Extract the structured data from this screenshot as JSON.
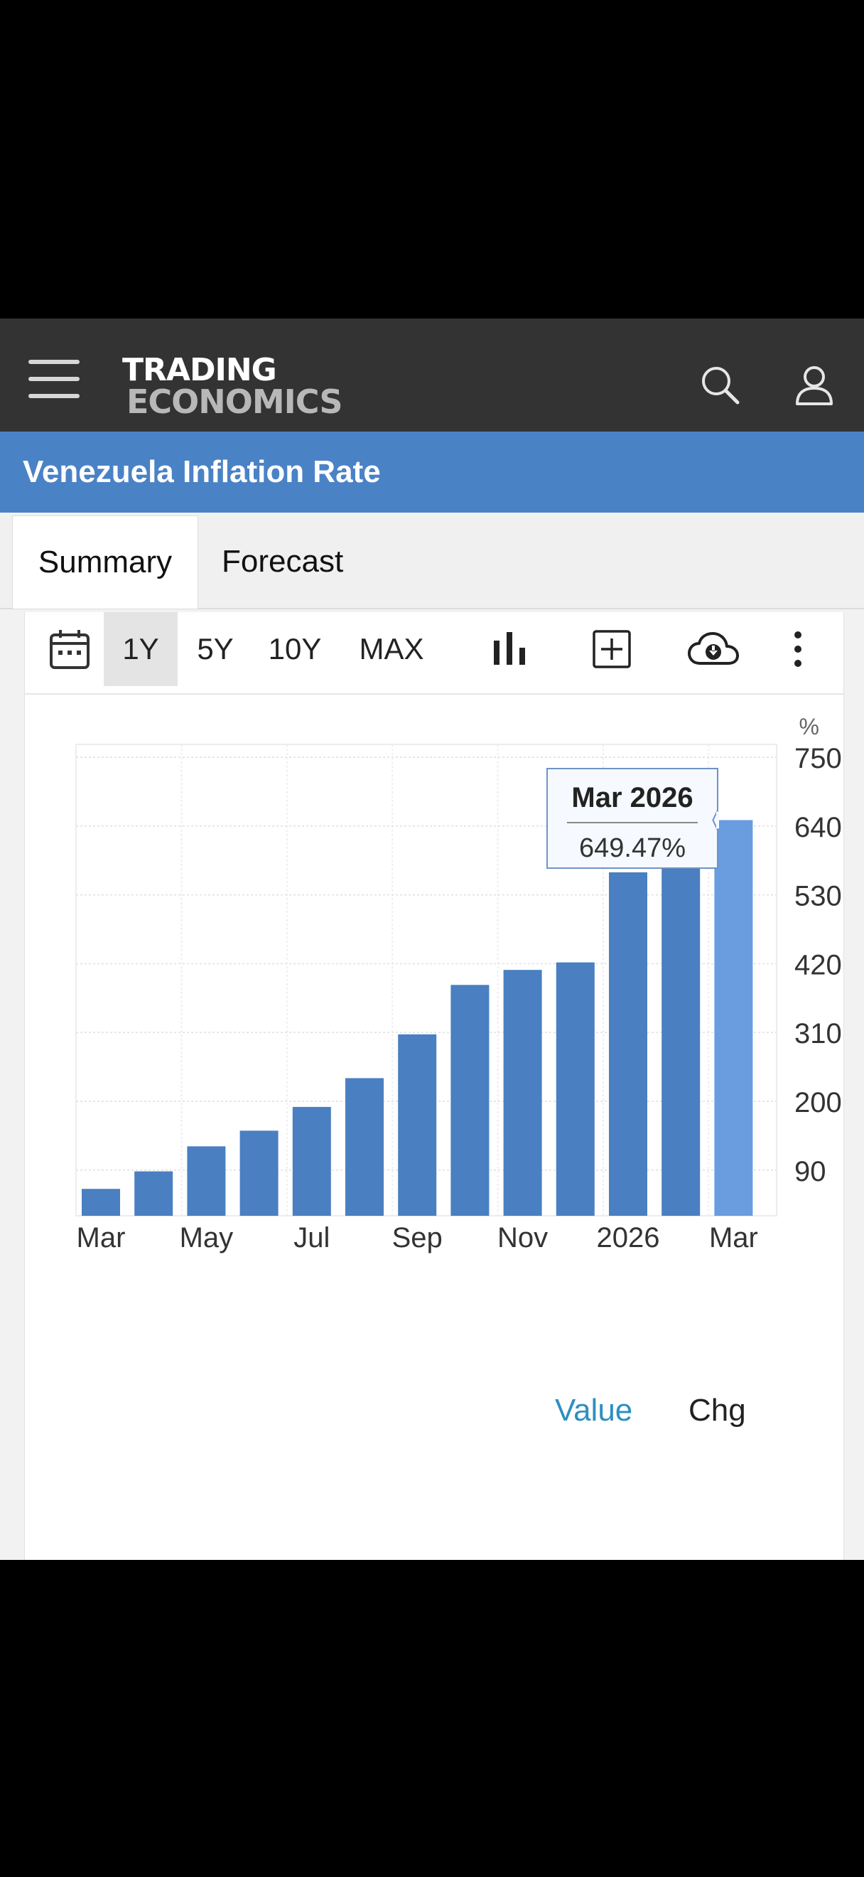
{
  "header": {
    "logo_line1": "TRADING",
    "logo_line2": "ECONOMICS",
    "icons": [
      "menu-icon",
      "search-icon",
      "user-icon"
    ]
  },
  "title": "Venezuela Inflation Rate",
  "tabs": [
    {
      "label": "Summary",
      "active": true
    },
    {
      "label": "Forecast",
      "active": false
    }
  ],
  "toolbar": {
    "ranges": [
      {
        "label": "1Y",
        "active": true
      },
      {
        "label": "5Y",
        "active": false
      },
      {
        "label": "10Y",
        "active": false
      },
      {
        "label": "MAX",
        "active": false
      }
    ],
    "icons": [
      "calendar-icon",
      "bar-chart-icon",
      "add-icon",
      "cloud-download-icon",
      "more-icon"
    ]
  },
  "chart_data": {
    "type": "bar",
    "unit_label": "%",
    "categories": [
      "Mar 2025",
      "Apr 2025",
      "May 2025",
      "Jun 2025",
      "Jul 2025",
      "Aug 2025",
      "Sep 2025",
      "Oct 2025",
      "Nov 2025",
      "Dec 2025",
      "Jan 2026",
      "Feb 2026",
      "Mar 2026"
    ],
    "values": [
      60,
      88,
      128,
      153,
      191,
      237,
      307,
      386,
      410,
      422,
      566,
      600,
      649.47
    ],
    "x_tick_labels": [
      "Mar",
      "May",
      "Jul",
      "Sep",
      "Nov",
      "2026",
      "Mar"
    ],
    "y_ticks": [
      90,
      200,
      310,
      420,
      530,
      640,
      750
    ],
    "ylim": [
      17,
      775
    ],
    "y_axis_side": "right",
    "grid": true,
    "highlighted_index": 12,
    "tooltip": {
      "title": "Mar 2026",
      "value": "649.47%"
    },
    "colors": {
      "bar": "#4a7fc1",
      "bar_highlight": "#6a9ce0"
    }
  },
  "legend": [
    {
      "label": "Value",
      "active": true,
      "color": "#2e8fc0"
    },
    {
      "label": "Chg",
      "active": false,
      "color": "#222222"
    }
  ]
}
